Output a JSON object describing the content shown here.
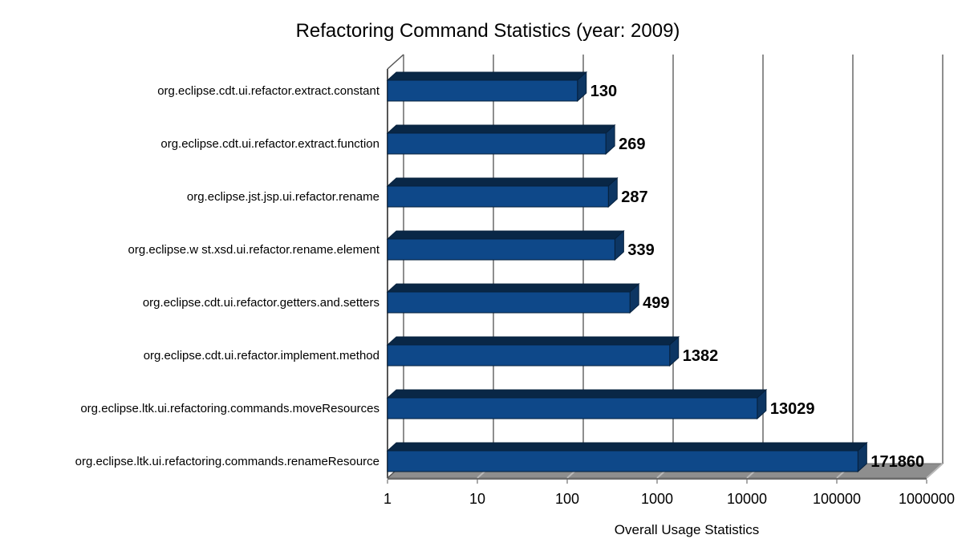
{
  "chart_data": {
    "type": "bar",
    "orientation": "horizontal",
    "scale": "log10",
    "title": "Refactoring Command Statistics (year: 2009)",
    "xlabel": "Overall Usage Statistics",
    "ylabel": "",
    "xlim": [
      1,
      1000000
    ],
    "x_ticks": [
      1,
      10,
      100,
      1000,
      10000,
      100000,
      1000000
    ],
    "x_tick_labels": [
      "1",
      "10",
      "100",
      "1000",
      "10000",
      "100000",
      "1000000"
    ],
    "grid": true,
    "legend": false,
    "style": "3d-bars",
    "categories": [
      "org.eclipse.cdt.ui.refactor.extract.constant",
      "org.eclipse.cdt.ui.refactor.extract.function",
      "org.eclipse.jst.jsp.ui.refactor.rename",
      "org.eclipse.w st.xsd.ui.refactor.rename.element",
      "org.eclipse.cdt.ui.refactor.getters.and.setters",
      "org.eclipse.cdt.ui.refactor.implement.method",
      "org.eclipse.ltk.ui.refactoring.commands.moveResources",
      "org.eclipse.ltk.ui.refactoring.commands.renameResource"
    ],
    "values": [
      130,
      269,
      287,
      339,
      499,
      1382,
      13029,
      171860
    ],
    "value_labels": [
      "130",
      "269",
      "287",
      "339",
      "499",
      "1382",
      "13029",
      "171860"
    ]
  },
  "colors": {
    "bar_front": "#0E4889",
    "bar_top": "#092746",
    "bar_side": "#0D3663",
    "bar_outline": "#06203C",
    "floor": "#8E8E8E",
    "floor_highlight": "#B9B9B9",
    "floor_edge": "#6C6C6C",
    "gridline": "#8E8E8E",
    "axis": "#555555",
    "text": "#000000",
    "background": "#FFFFFF"
  }
}
